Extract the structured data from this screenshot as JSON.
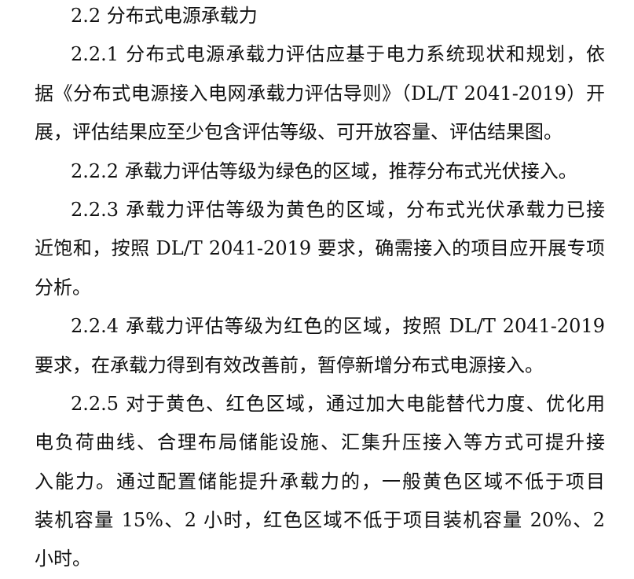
{
  "heading": "2.2  分布式电源承载力",
  "paragraphs": [
    {
      "lines": [
        "2.2.1  分布式电源承载力评估应基于电力系统现状和规划，依",
        "据《分布式电源接入电网承载力评估导则》（DL/T 2041-2019）开",
        "展，评估结果应至少包含评估等级、可开放容量、评估结果图。"
      ]
    },
    {
      "lines": [
        "2.2.2  承载力评估等级为绿色的区域，推荐分布式光伏接入。"
      ]
    },
    {
      "lines": [
        "2.2.3  承载力评估等级为黄色的区域，分布式光伏承载力已接",
        "近饱和，按照 DL/T 2041-2019 要求，确需接入的项目应开展专项",
        "分析。"
      ]
    },
    {
      "lines": [
        "2.2.4  承载力评估等级为红色的区域，按照 DL/T 2041-2019",
        "要求，在承载力得到有效改善前，暂停新增分布式电源接入。"
      ]
    },
    {
      "lines": [
        "2.2.5  对于黄色、红色区域，通过加大电能替代力度、优化用",
        "电负荷曲线、合理布局储能设施、汇集升压接入等方式可提升接",
        "入能力。通过配置储能提升承载力的，一般黄色区域不低于项目",
        "装机容量 15%、2 小时，红色区域不低于项目装机容量 20%、2",
        "小时。"
      ]
    }
  ]
}
